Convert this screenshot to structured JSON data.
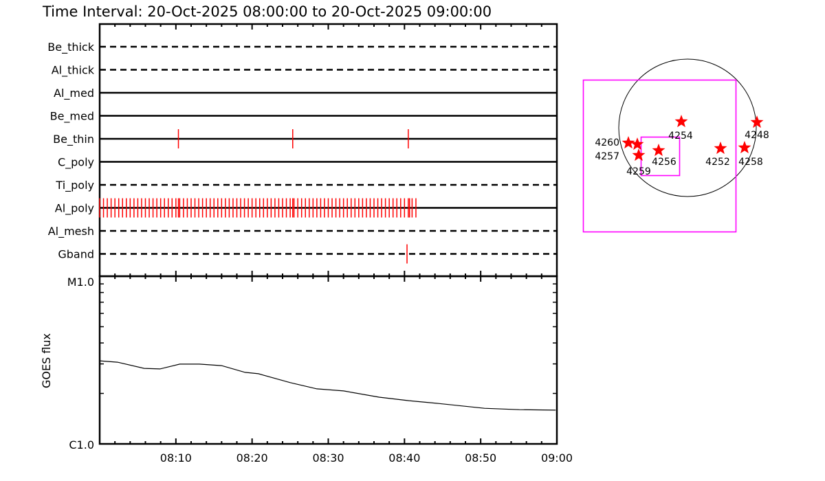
{
  "chart_data": [
    {
      "type": "timeline",
      "title": "Time Interval: 20-Oct-2025 08:00:00 to 20-Oct-2025 09:00:00",
      "xlim": [
        "08:00:00",
        "09:00:00"
      ],
      "grid": false,
      "mark_color": "#ff0000",
      "rows": [
        {
          "label": "Be_thick",
          "line": "dashed",
          "times": []
        },
        {
          "label": "Al_thick",
          "line": "dashed",
          "times": []
        },
        {
          "label": "Al_med",
          "line": "solid",
          "times": []
        },
        {
          "label": "Be_med",
          "line": "solid",
          "times": []
        },
        {
          "label": "Be_thin",
          "line": "solid",
          "times": [
            "08:10:20",
            "08:25:20",
            "08:40:30"
          ]
        },
        {
          "label": "C_poly",
          "line": "solid",
          "times": []
        },
        {
          "label": "Ti_poly",
          "line": "dashed",
          "times": []
        },
        {
          "label": "Al_poly",
          "line": "solid",
          "times": [
            "08:00:00",
            "08:00:30",
            "08:01:00",
            "08:01:30",
            "08:02:00",
            "08:02:30",
            "08:03:00",
            "08:03:30",
            "08:04:00",
            "08:04:30",
            "08:05:00",
            "08:05:30",
            "08:06:00",
            "08:06:30",
            "08:07:00",
            "08:07:30",
            "08:08:00",
            "08:08:30",
            "08:09:00",
            "08:09:30",
            "08:10:00",
            "08:10:20",
            "08:10:30",
            "08:11:00",
            "08:11:30",
            "08:12:00",
            "08:12:30",
            "08:13:00",
            "08:13:30",
            "08:14:00",
            "08:14:30",
            "08:15:00",
            "08:15:30",
            "08:16:00",
            "08:16:30",
            "08:17:00",
            "08:17:30",
            "08:18:00",
            "08:18:30",
            "08:19:00",
            "08:19:30",
            "08:20:00",
            "08:20:30",
            "08:21:00",
            "08:21:30",
            "08:22:00",
            "08:22:30",
            "08:23:00",
            "08:23:30",
            "08:24:00",
            "08:24:30",
            "08:25:00",
            "08:25:20",
            "08:25:30",
            "08:26:00",
            "08:26:30",
            "08:27:00",
            "08:27:30",
            "08:28:00",
            "08:28:30",
            "08:29:00",
            "08:29:30",
            "08:30:00",
            "08:30:30",
            "08:31:00",
            "08:31:30",
            "08:32:00",
            "08:32:30",
            "08:33:00",
            "08:33:30",
            "08:34:00",
            "08:34:30",
            "08:35:00",
            "08:35:30",
            "08:36:00",
            "08:36:30",
            "08:37:00",
            "08:37:30",
            "08:38:00",
            "08:38:30",
            "08:39:00",
            "08:39:30",
            "08:40:00",
            "08:40:30",
            "08:40:40",
            "08:41:00",
            "08:41:30"
          ]
        },
        {
          "label": "Al_mesh",
          "line": "dashed",
          "times": []
        },
        {
          "label": "Gband",
          "line": "dashed",
          "times": [
            "08:40:20"
          ]
        }
      ]
    },
    {
      "type": "line",
      "ylabel": "GOES flux",
      "yscale": "log",
      "ylim": [
        1e-06,
        1e-05
      ],
      "ytick_labels": [
        "C1.0",
        "M1.0"
      ],
      "xlim": [
        "08:00:00",
        "09:00:00"
      ],
      "xtick_labels": [
        "08:10",
        "08:20",
        "08:30",
        "08:40",
        "08:50",
        "09:00"
      ],
      "series": [
        {
          "x": [
            "08:00:00",
            "08:02:20",
            "08:05:50",
            "08:07:55",
            "08:10:30",
            "08:13:05",
            "08:16:00",
            "08:19:05",
            "08:20:50",
            "08:25:00",
            "08:28:30",
            "08:32:00",
            "08:36:40",
            "08:40:35",
            "08:44:35",
            "08:50:30",
            "08:55:05",
            "08:59:50"
          ],
          "y": [
            3.13e-06,
            3.07e-06,
            2.82e-06,
            2.8e-06,
            2.99e-06,
            2.99e-06,
            2.93e-06,
            2.67e-06,
            2.62e-06,
            2.32e-06,
            2.13e-06,
            2.07e-06,
            1.9e-06,
            1.81e-06,
            1.74e-06,
            1.63e-06,
            1.6e-06,
            1.59e-06
          ]
        }
      ]
    },
    {
      "type": "scatter",
      "marker": "star",
      "marker_color": "#ff0000",
      "box_color": "#ff00ff",
      "labels": [
        "4254",
        "4248",
        "4252",
        "4258",
        "4256",
        "4260",
        "4257",
        "4259"
      ]
    }
  ]
}
